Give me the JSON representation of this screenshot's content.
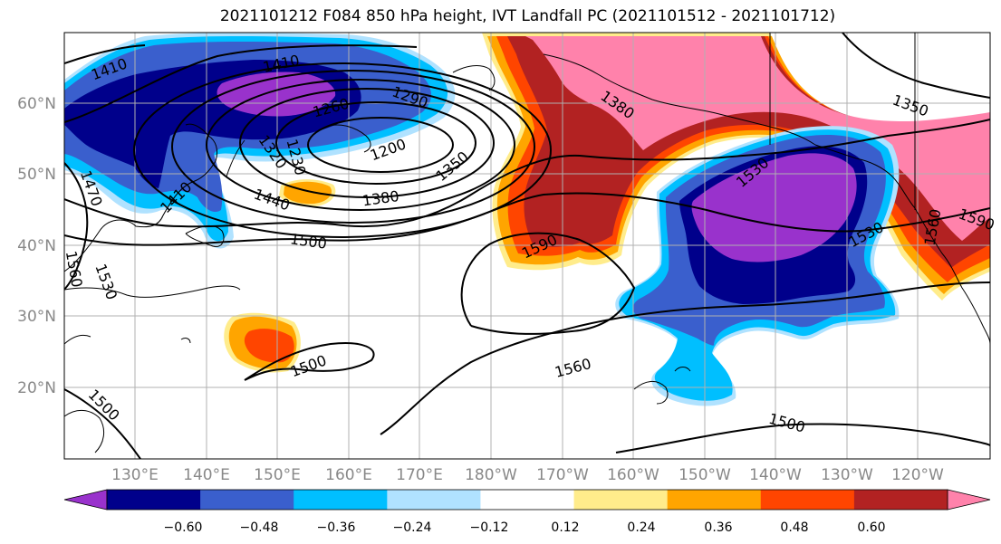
{
  "title": "2021101212 F084 850 hPa height, IVT Landfall PC (2021101512 - 2021101712)",
  "latitude_labels": [
    "60°N",
    "50°N",
    "40°N",
    "30°N",
    "20°N"
  ],
  "longitude_labels": [
    "130°E",
    "140°E",
    "150°E",
    "160°E",
    "170°E",
    "180°W",
    "170°W",
    "160°W",
    "150°W",
    "140°W",
    "130°W",
    "120°W"
  ],
  "contour_labels": [
    "1410",
    "1410",
    "1290",
    "1260",
    "1230",
    "1200",
    "1320",
    "1350",
    "1380",
    "1440",
    "1470",
    "1410",
    "1500",
    "1530",
    "1560",
    "1590",
    "1380",
    "1530",
    "1530",
    "1350",
    "1560",
    "1590",
    "1500",
    "1560",
    "1500",
    "1500"
  ],
  "colorbar": {
    "ticks": [
      "−0.60",
      "−0.48",
      "−0.36",
      "−0.24",
      "−0.12",
      "0.12",
      "0.24",
      "0.36",
      "0.48",
      "0.60"
    ],
    "colors": [
      "#9932cc",
      "#00008b",
      "#3a5fcd",
      "#00bfff",
      "#b0e2ff",
      "#ffffff",
      "#ffec8b",
      "#ffa500",
      "#ff4500",
      "#b22222",
      "#ff82ab"
    ]
  },
  "fill_colors": {
    "purple": "#9932cc",
    "navy": "#00008b",
    "blue": "#3a5fcd",
    "deepsky": "#00bfff",
    "lightblue": "#b0e2ff",
    "yellow": "#ffec8b",
    "orange": "#ffa500",
    "orangered": "#ff4500",
    "firebrick": "#b22222",
    "pink": "#ff82ab"
  }
}
